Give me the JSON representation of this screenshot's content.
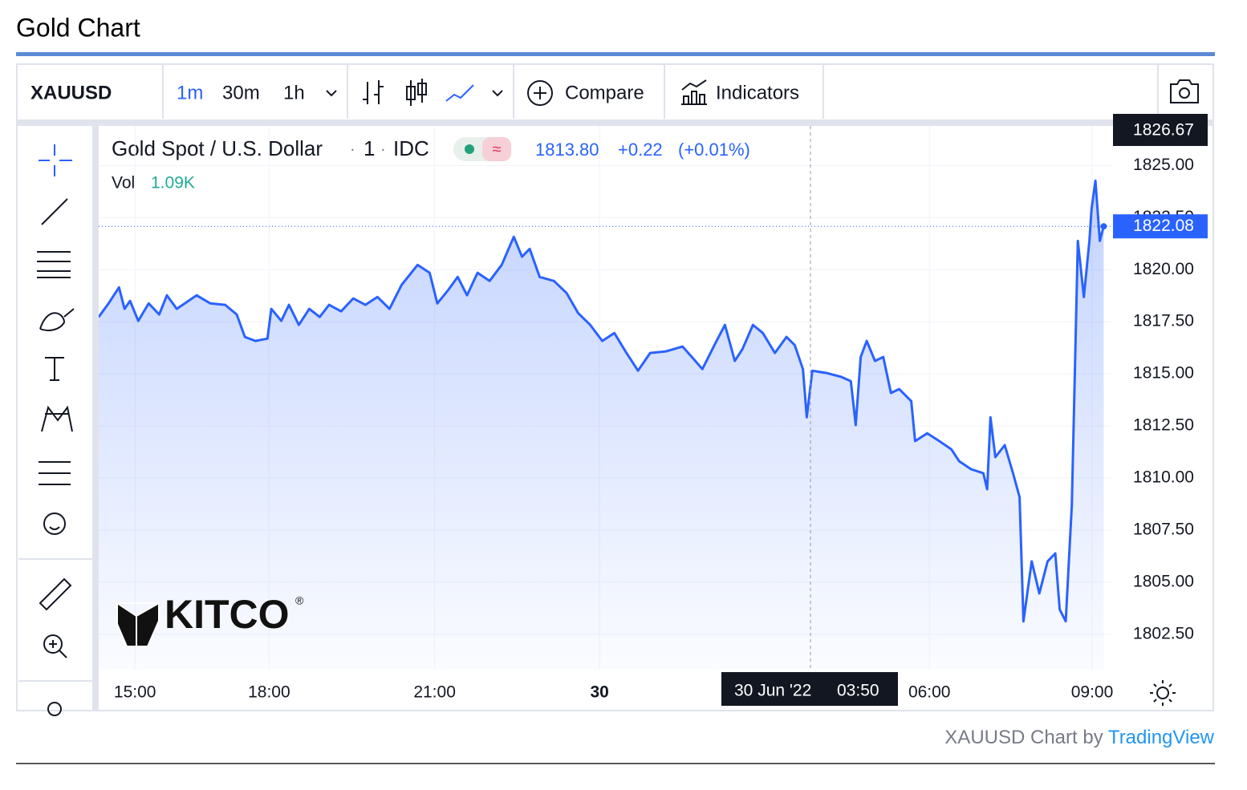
{
  "page_title": "Gold Chart",
  "toolbar": {
    "symbol": "XAUUSD",
    "intervals": [
      "1m",
      "30m",
      "1h"
    ],
    "compare": "Compare",
    "indicators": "Indicators"
  },
  "watermark": {
    "brand": "KITCO",
    "mark": "®"
  },
  "footer": {
    "prefix": "XAUUSD Chart by",
    "link": "TradingView"
  },
  "chart_data": {
    "type": "line",
    "title": "Gold Spot / U.S. Dollar",
    "interval": "1",
    "source": "IDC",
    "legend_price": "1813.80",
    "legend_change": "+0.22",
    "legend_change_pct": "(+0.01%)",
    "volume_label": "Vol",
    "volume_value": "1.09K",
    "crosshair_date": "30 Jun '22",
    "crosshair_time": "03:50",
    "crosshair_price": 1826.67,
    "last_price": 1822.08,
    "color": "#2962ff",
    "xlim": [
      -0.66,
      17.76
    ],
    "ylim": [
      1800.8,
      1826.9
    ],
    "xticks": [
      {
        "value": 0,
        "label": "15:00"
      },
      {
        "value": 2.44,
        "label": "18:00"
      },
      {
        "value": 5.45,
        "label": "21:00"
      },
      {
        "value": 8.45,
        "label": "30"
      },
      {
        "value": 14.45,
        "label": "06:00"
      },
      {
        "value": 17.41,
        "label": "09:00"
      }
    ],
    "yticks": [
      {
        "value": 1802.5,
        "label": "1802.50"
      },
      {
        "value": 1805,
        "label": "1805.00"
      },
      {
        "value": 1807.5,
        "label": "1807.50"
      },
      {
        "value": 1810,
        "label": "1810.00"
      },
      {
        "value": 1812.5,
        "label": "1812.50"
      },
      {
        "value": 1815,
        "label": "1815.00"
      },
      {
        "value": 1817.5,
        "label": "1817.50"
      },
      {
        "value": 1820,
        "label": "1820.00"
      },
      {
        "value": 1822.5,
        "label": "1822.50"
      },
      {
        "value": 1825,
        "label": "1825.00"
      }
    ],
    "grid": true,
    "x": [
      -0.66,
      -0.48,
      -0.29,
      -0.19,
      -0.09,
      0.06,
      0.25,
      0.44,
      0.58,
      0.76,
      1.12,
      1.37,
      1.64,
      1.85,
      2.0,
      2.19,
      2.41,
      2.48,
      2.66,
      2.8,
      2.98,
      3.17,
      3.36,
      3.53,
      3.75,
      3.97,
      4.19,
      4.41,
      4.63,
      4.85,
      5.14,
      5.36,
      5.5,
      5.69,
      5.87,
      6.04,
      6.23,
      6.45,
      6.67,
      6.89,
      7.04,
      7.18,
      7.36,
      7.62,
      7.85,
      8.06,
      8.28,
      8.5,
      8.72,
      8.94,
      9.15,
      9.37,
      9.66,
      9.96,
      10.13,
      10.32,
      10.54,
      10.73,
      10.91,
      11.05,
      11.24,
      11.42,
      11.64,
      11.85,
      12.0,
      12.15,
      12.22,
      12.32,
      12.58,
      12.85,
      13.02,
      13.11,
      13.2,
      13.31,
      13.46,
      13.61,
      13.75,
      13.9,
      14.12,
      14.19,
      14.41,
      14.63,
      14.85,
      14.99,
      15.21,
      15.43,
      15.5,
      15.56,
      15.65,
      15.82,
      15.97,
      16.09,
      16.16,
      16.31,
      16.45,
      16.6,
      16.74,
      16.82,
      16.93,
      17.04,
      17.15,
      17.26,
      17.36,
      17.4,
      17.47,
      17.55,
      17.62
    ],
    "values": [
      1817.73,
      1818.38,
      1819.15,
      1818.12,
      1818.5,
      1817.54,
      1818.38,
      1817.85,
      1818.77,
      1818.12,
      1818.77,
      1818.38,
      1818.31,
      1817.85,
      1816.77,
      1816.58,
      1816.69,
      1818.12,
      1817.54,
      1818.31,
      1817.35,
      1818.12,
      1817.73,
      1818.31,
      1818.0,
      1818.62,
      1818.31,
      1818.69,
      1818.12,
      1819.27,
      1820.23,
      1819.85,
      1818.38,
      1819.0,
      1819.65,
      1818.77,
      1819.85,
      1819.46,
      1820.23,
      1821.58,
      1820.62,
      1821.0,
      1819.65,
      1819.46,
      1818.88,
      1817.92,
      1817.35,
      1816.58,
      1816.96,
      1816.0,
      1815.15,
      1816.0,
      1816.08,
      1816.31,
      1815.81,
      1815.23,
      1816.38,
      1817.35,
      1815.62,
      1816.19,
      1817.35,
      1816.96,
      1816.0,
      1816.77,
      1816.38,
      1815.23,
      1812.92,
      1815.15,
      1815.04,
      1814.85,
      1814.65,
      1812.54,
      1815.81,
      1816.58,
      1815.62,
      1815.81,
      1814.08,
      1814.27,
      1813.69,
      1811.77,
      1812.15,
      1811.77,
      1811.38,
      1810.81,
      1810.42,
      1810.23,
      1809.46,
      1812.92,
      1811.0,
      1811.58,
      1810.23,
      1809.08,
      1803.12,
      1806.0,
      1804.46,
      1806.0,
      1806.38,
      1803.69,
      1803.12,
      1808.69,
      1821.38,
      1818.69,
      1821.38,
      1822.92,
      1824.27,
      1821.38,
      1822.08
    ]
  }
}
